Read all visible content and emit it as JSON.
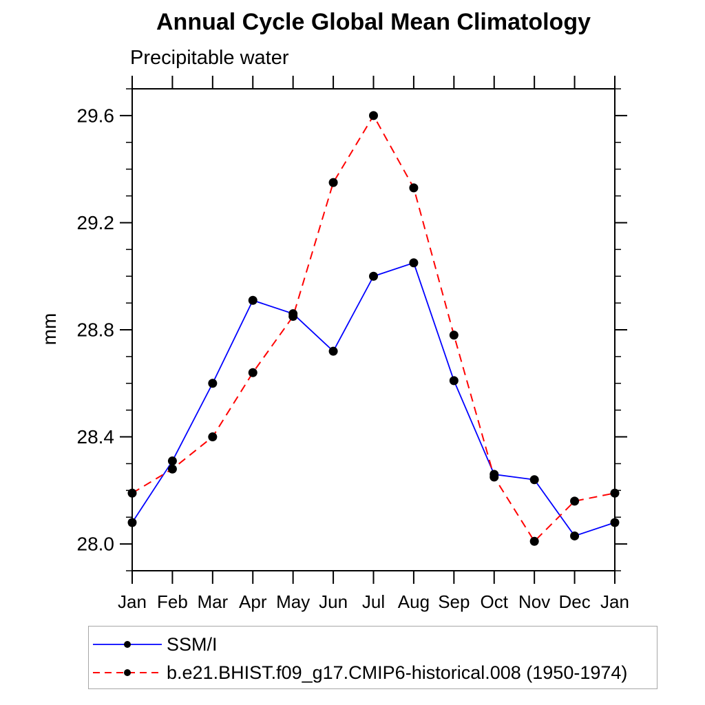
{
  "chart_data": {
    "type": "line",
    "title": "Annual Cycle Global Mean Climatology",
    "subtitle": "Precipitable water",
    "xlabel": "",
    "ylabel": "mm",
    "categories": [
      "Jan",
      "Feb",
      "Mar",
      "Apr",
      "May",
      "Jun",
      "Jul",
      "Aug",
      "Sep",
      "Oct",
      "Nov",
      "Dec",
      "Jan"
    ],
    "ylim": [
      27.9,
      29.7
    ],
    "yticks": {
      "major_values": [
        28.0,
        28.4,
        28.8,
        29.2,
        29.6
      ],
      "major_labels": [
        "28.0",
        "28.4",
        "28.8",
        "29.2",
        "29.6"
      ],
      "minor_step": 0.1
    },
    "grid": false,
    "legend_position": "bottom-left-box",
    "frame_color": "#000000",
    "marker": "filled-circle",
    "series": [
      {
        "name": "SSM/I",
        "color": "#0000ff",
        "style": "solid",
        "marker_color": "#000000",
        "values": [
          28.08,
          28.31,
          28.6,
          28.91,
          28.86,
          28.72,
          29.0,
          29.05,
          28.61,
          28.26,
          28.24,
          28.03,
          28.08
        ]
      },
      {
        "name": "b.e21.BHIST.f09_g17.CMIP6-historical.008 (1950-1974)",
        "color": "#ff0000",
        "style": "dashed",
        "marker_color": "#000000",
        "values": [
          28.19,
          28.28,
          28.4,
          28.64,
          28.85,
          29.35,
          29.6,
          29.33,
          28.78,
          28.25,
          28.01,
          28.16,
          28.19
        ]
      }
    ]
  }
}
